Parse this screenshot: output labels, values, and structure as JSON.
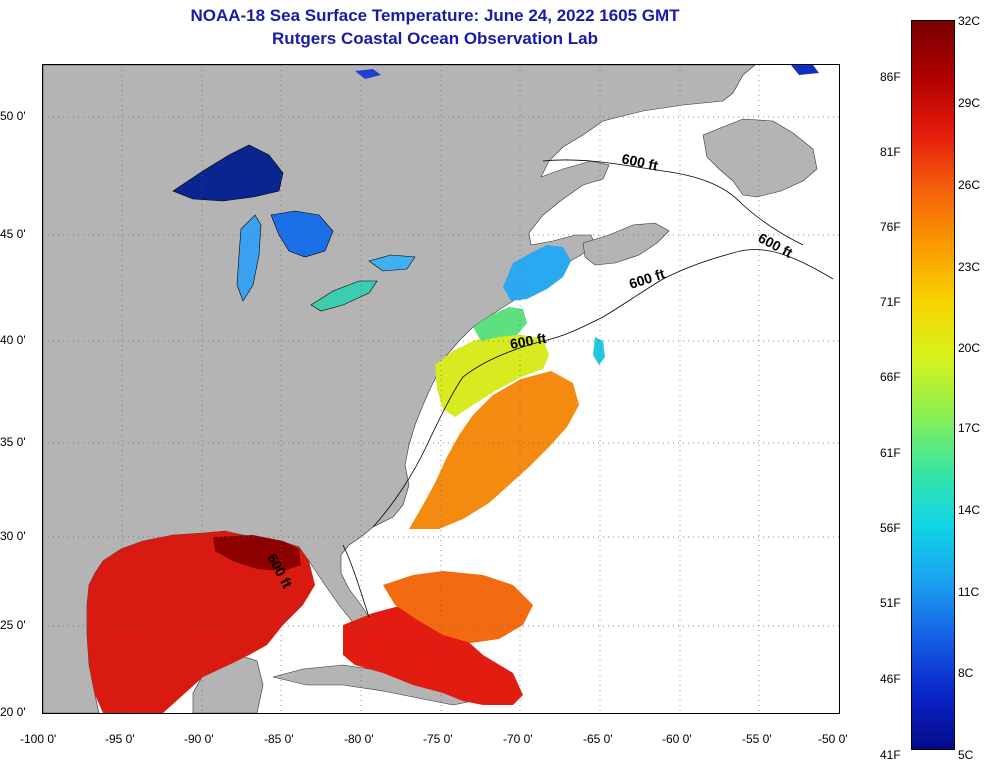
{
  "header": {
    "title": "NOAA-18 Sea Surface Temperature:  June 24, 2022 1605 GMT",
    "subtitle": "Rutgers Coastal Ocean Observation Lab"
  },
  "map": {
    "latitude_labels": [
      "50 0'",
      "45 0'",
      "40 0'",
      "35 0'",
      "30 0'",
      "25 0'",
      "20 0'"
    ],
    "longitude_labels": [
      "-100 0'",
      "-95 0'",
      "-90 0'",
      "-85 0'",
      "-80 0'",
      "-75 0'",
      "-70 0'",
      "-65 0'",
      "-60 0'",
      "-55 0'",
      "-50 0'"
    ],
    "contour_label": "600 ft",
    "land_color": "#b4b4b4",
    "no_data_color": "#ffffff"
  },
  "colorbar": {
    "celsius_labels": [
      "32C",
      "29C",
      "26C",
      "23C",
      "20C",
      "17C",
      "14C",
      "11C",
      "8C",
      "5C"
    ],
    "fahrenheit_labels": [
      "86F",
      "81F",
      "76F",
      "71F",
      "66F",
      "61F",
      "56F",
      "51F",
      "46F",
      "41F"
    ],
    "colors": [
      "#7a0000",
      "#b00000",
      "#e41a0a",
      "#f5600a",
      "#fa9a00",
      "#f7d400",
      "#d8f21a",
      "#8ef050",
      "#3ce6a0",
      "#10d4e6",
      "#1aa2f0",
      "#1460e6",
      "#0a26c8",
      "#050a8c"
    ]
  }
}
